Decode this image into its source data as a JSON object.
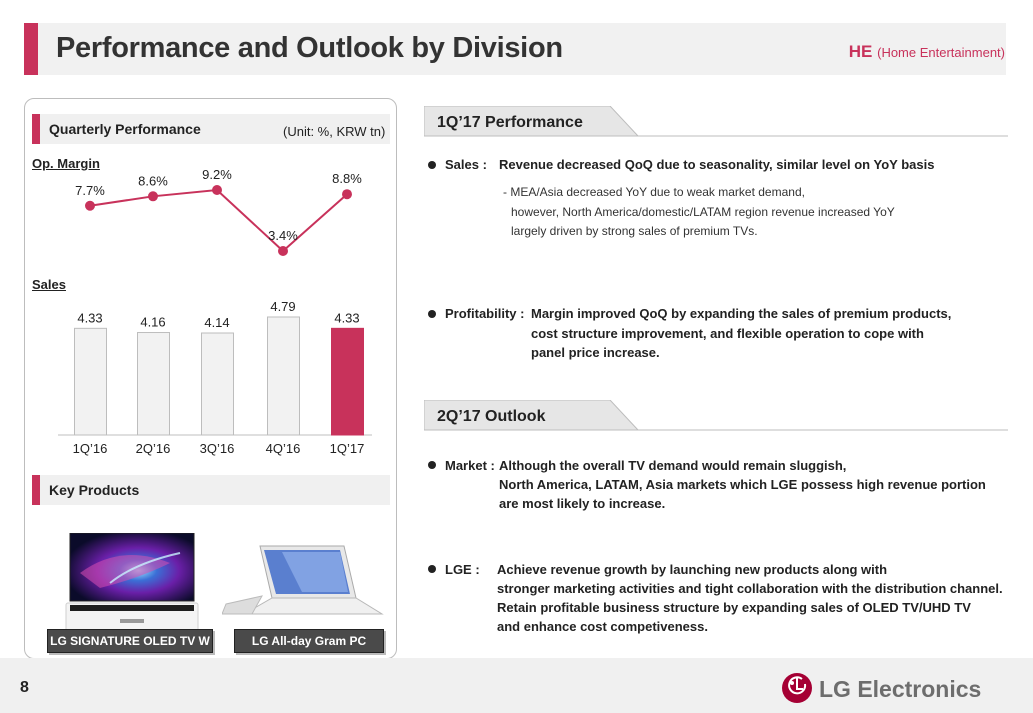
{
  "header": {
    "title": "Performance and Outlook by Division",
    "division": "HE",
    "division_full": "(Home Entertainment)"
  },
  "left": {
    "quarterly_title": "Quarterly Performance",
    "unit": "(Unit: %, KRW tn)",
    "op_margin_label": "Op. Margin",
    "sales_label": "Sales",
    "key_products_title": "Key Products",
    "products": [
      {
        "caption": "LG SIGNATURE OLED TV W"
      },
      {
        "caption": "LG All-day Gram  PC"
      }
    ]
  },
  "chart_data": [
    {
      "type": "line",
      "title": "Op. Margin",
      "categories": [
        "1Q'16",
        "2Q'16",
        "3Q'16",
        "4Q'16",
        "1Q'17"
      ],
      "values": [
        7.7,
        8.6,
        9.2,
        3.4,
        8.8
      ],
      "labels": [
        "7.7%",
        "8.6%",
        "9.2%",
        "3.4%",
        "8.8%"
      ],
      "color": "#c8325b"
    },
    {
      "type": "bar",
      "title": "Sales",
      "categories": [
        "1Q’16",
        "2Q’16",
        "3Q’16",
        "4Q’16",
        "1Q’17"
      ],
      "values": [
        4.33,
        4.16,
        4.14,
        4.79,
        4.33
      ],
      "labels": [
        "4.33",
        "4.16",
        "4.14",
        "4.79",
        "4.33"
      ],
      "colors": [
        "#f2f2f2",
        "#f2f2f2",
        "#f2f2f2",
        "#f2f2f2",
        "#c8325b"
      ]
    }
  ],
  "performance": {
    "tab": "1Q’17 Performance",
    "sales_label": "Sales :",
    "sales_text": "Revenue decreased QoQ due to seasonality, similar level on  YoY basis",
    "sales_details": [
      "- MEA/Asia decreased YoY due to weak market demand,",
      "however, North America/domestic/LATAM region revenue increased YoY",
      "largely driven by strong sales of premium TVs."
    ],
    "profit_label": "Profitability :",
    "profit_lines": [
      "Margin improved QoQ by expanding the sales of premium products,",
      "cost structure improvement, and flexible operation to cope with",
      "panel price increase."
    ]
  },
  "outlook": {
    "tab": "2Q’17 Outlook",
    "market_label": "Market :",
    "market_lines": [
      "Although the overall TV demand would remain sluggish,",
      "North America, LATAM, Asia markets which LGE possess high revenue portion",
      "are most likely to increase."
    ],
    "lge_label": "LGE :",
    "lge_lines": [
      "Achieve revenue growth by launching new products along with",
      "stronger marketing activities and tight collaboration with the distribution channel.",
      "Retain profitable business structure by expanding sales of OLED TV/UHD TV",
      "and enhance cost competiveness."
    ]
  },
  "footer": {
    "page": "8",
    "brand": "LG Electronics"
  }
}
